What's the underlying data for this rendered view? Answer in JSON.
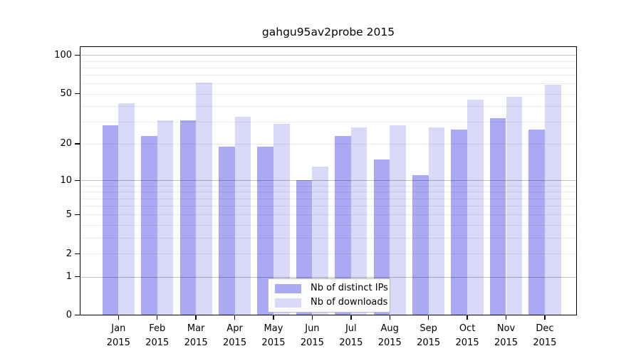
{
  "title": "gahgu95av2probe 2015",
  "colors": {
    "bar_ips": "#a9a9f4",
    "bar_downloads": "#d9d9f8",
    "grid_minor": "rgba(0,0,0,0.08)",
    "grid_major": "rgba(0,0,0,0.25)",
    "axis": "#000000"
  },
  "axes": {
    "y_tick_values": [
      100,
      50,
      20,
      10,
      5,
      2,
      1,
      0
    ],
    "y_tick_labels": [
      "100",
      "50",
      "20",
      "10",
      "5",
      "2",
      "1",
      "0"
    ],
    "grid_minor_values": [
      2,
      3,
      4,
      5,
      6,
      7,
      8,
      9,
      20,
      30,
      40,
      50,
      60,
      70,
      80,
      90
    ],
    "grid_major_values": [
      1,
      10,
      100
    ]
  },
  "legend": {
    "items": [
      {
        "label": "Nb of distinct IPs",
        "color": "#a9a9f4"
      },
      {
        "label": "Nb of downloads",
        "color": "#d9d9f8"
      }
    ]
  },
  "chart_data": {
    "type": "bar",
    "title": "gahgu95av2probe 2015",
    "categories": [
      "Jan 2015",
      "Feb 2015",
      "Mar 2015",
      "Apr 2015",
      "May 2015",
      "Jun 2015",
      "Jul 2015",
      "Aug 2015",
      "Sep 2015",
      "Oct 2015",
      "Nov 2015",
      "Dec 2015"
    ],
    "series": [
      {
        "name": "Nb of distinct IPs",
        "color": "#a9a9f4",
        "values": [
          28,
          23,
          31,
          19,
          19,
          10,
          23,
          15,
          11,
          26,
          32,
          26
        ]
      },
      {
        "name": "Nb of downloads",
        "color": "#d9d9f8",
        "values": [
          42,
          31,
          61,
          33,
          29,
          13,
          27,
          28,
          27,
          45,
          47,
          59
        ]
      }
    ],
    "xlabel": "",
    "ylabel": "",
    "yscale": "log1p",
    "yticks": [
      0,
      1,
      2,
      5,
      10,
      20,
      50,
      100
    ],
    "ylim": [
      0,
      115
    ],
    "grid": "on",
    "legend_position": "bottom-center"
  }
}
